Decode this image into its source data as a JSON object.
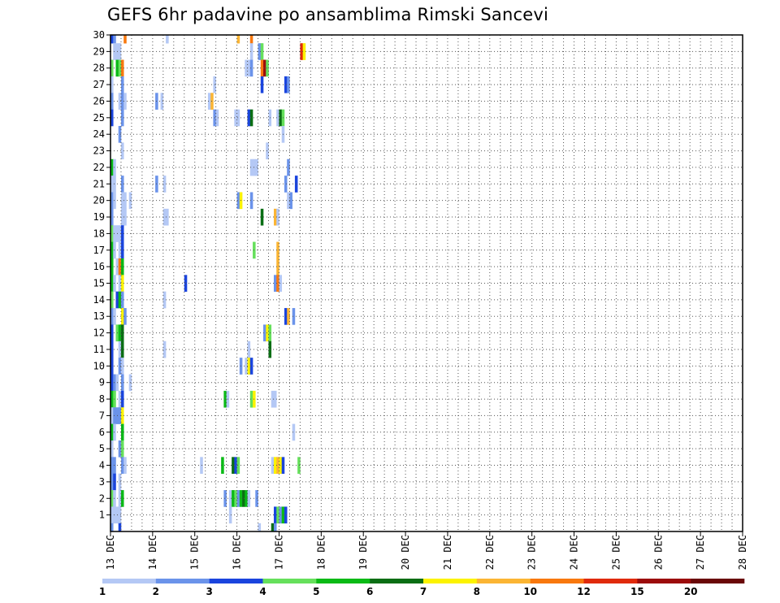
{
  "chart_data": {
    "type": "heatmap",
    "title": "GEFS 6hr padavine po ansamblima Rimski Sancevi",
    "x_tick_labels": [
      "13 DEC",
      "14 DEC",
      "15 DEC",
      "16 DEC",
      "17 DEC",
      "18 DEC",
      "19 DEC",
      "20 DEC",
      "21 DEC",
      "22 DEC",
      "23 DEC",
      "24 DEC",
      "25 DEC",
      "26 DEC",
      "27 DEC",
      "28 DEC"
    ],
    "y_tick_labels": [
      "1",
      "2",
      "3",
      "4",
      "5",
      "6",
      "7",
      "8",
      "9",
      "10",
      "11",
      "12",
      "13",
      "14",
      "15",
      "16",
      "17",
      "18",
      "19",
      "20",
      "21",
      "22",
      "23",
      "24",
      "25",
      "26",
      "27",
      "28",
      "29",
      "30"
    ],
    "xlim": [
      0,
      60
    ],
    "ylim": [
      0,
      30
    ],
    "steps_per_day": 4,
    "grid": true,
    "colorbar": {
      "labels": [
        "1",
        "2",
        "3",
        "4",
        "5",
        "6",
        "7",
        "8",
        "10",
        "12",
        "15",
        "20"
      ],
      "colors": [
        "#b4c8f5",
        "#6b93ea",
        "#1a44de",
        "#66e05c",
        "#0aba16",
        "#0a6e14",
        "#fcf300",
        "#fbb534",
        "#f8780e",
        "#e02a0c",
        "#9c0c0c",
        "#6a0808"
      ]
    },
    "cells": [
      [
        0,
        30,
        2
      ],
      [
        1,
        30,
        1
      ],
      [
        5,
        30,
        8
      ],
      [
        21,
        30,
        0
      ],
      [
        48,
        30,
        7
      ],
      [
        53,
        30,
        8
      ],
      [
        1,
        29,
        0
      ],
      [
        2,
        29,
        0
      ],
      [
        3,
        29,
        0
      ],
      [
        53,
        29,
        0
      ],
      [
        56,
        29,
        1
      ],
      [
        57,
        29,
        3
      ],
      [
        72,
        29,
        9
      ],
      [
        73,
        29,
        6
      ],
      [
        0,
        28,
        3
      ],
      [
        2,
        28,
        4
      ],
      [
        3,
        28,
        3
      ],
      [
        4,
        28,
        8
      ],
      [
        51,
        28,
        0
      ],
      [
        52,
        28,
        0
      ],
      [
        53,
        28,
        1
      ],
      [
        57,
        28,
        8
      ],
      [
        58,
        28,
        10
      ],
      [
        59,
        28,
        3
      ],
      [
        0,
        27,
        0
      ],
      [
        4,
        27,
        1
      ],
      [
        39,
        27,
        0
      ],
      [
        57,
        27,
        2
      ],
      [
        66,
        27,
        2
      ],
      [
        67,
        27,
        1
      ],
      [
        0,
        26,
        1
      ],
      [
        3,
        26,
        0
      ],
      [
        4,
        26,
        1
      ],
      [
        5,
        26,
        0
      ],
      [
        17,
        26,
        1
      ],
      [
        19,
        26,
        0
      ],
      [
        37,
        26,
        0
      ],
      [
        38,
        26,
        7
      ],
      [
        0,
        25,
        2
      ],
      [
        4,
        25,
        1
      ],
      [
        39,
        25,
        1
      ],
      [
        40,
        25,
        0
      ],
      [
        47,
        25,
        0
      ],
      [
        48,
        25,
        0
      ],
      [
        52,
        25,
        2
      ],
      [
        53,
        25,
        5
      ],
      [
        60,
        25,
        0
      ],
      [
        63,
        25,
        0
      ],
      [
        64,
        25,
        5
      ],
      [
        65,
        25,
        3
      ],
      [
        3,
        24,
        1
      ],
      [
        65,
        24,
        0
      ],
      [
        4,
        23,
        0
      ],
      [
        59,
        23,
        0
      ],
      [
        0,
        22,
        4
      ],
      [
        1,
        22,
        0
      ],
      [
        53,
        22,
        0
      ],
      [
        54,
        22,
        0
      ],
      [
        55,
        22,
        0
      ],
      [
        67,
        22,
        1
      ],
      [
        0,
        21,
        0
      ],
      [
        1,
        21,
        0
      ],
      [
        4,
        21,
        1
      ],
      [
        17,
        21,
        1
      ],
      [
        20,
        21,
        0
      ],
      [
        66,
        21,
        1
      ],
      [
        70,
        21,
        2
      ],
      [
        0,
        20,
        1
      ],
      [
        1,
        20,
        0
      ],
      [
        4,
        20,
        0
      ],
      [
        5,
        20,
        0
      ],
      [
        7,
        20,
        0
      ],
      [
        48,
        20,
        1
      ],
      [
        49,
        20,
        6
      ],
      [
        53,
        20,
        1
      ],
      [
        67,
        20,
        0
      ],
      [
        68,
        20,
        1
      ],
      [
        0,
        19,
        1
      ],
      [
        4,
        19,
        0
      ],
      [
        5,
        19,
        0
      ],
      [
        20,
        19,
        0
      ],
      [
        21,
        19,
        0
      ],
      [
        57,
        19,
        5
      ],
      [
        62,
        19,
        7
      ],
      [
        63,
        19,
        0
      ],
      [
        0,
        18,
        3
      ],
      [
        1,
        18,
        0
      ],
      [
        2,
        18,
        0
      ],
      [
        3,
        18,
        0
      ],
      [
        4,
        18,
        2
      ],
      [
        0,
        17,
        4
      ],
      [
        1,
        17,
        0
      ],
      [
        3,
        17,
        0
      ],
      [
        4,
        17,
        2
      ],
      [
        54,
        17,
        3
      ],
      [
        63,
        17,
        7
      ],
      [
        0,
        16,
        4
      ],
      [
        2,
        16,
        0
      ],
      [
        3,
        16,
        8
      ],
      [
        4,
        16,
        4
      ],
      [
        63,
        16,
        7
      ],
      [
        0,
        15,
        4
      ],
      [
        1,
        15,
        0
      ],
      [
        3,
        15,
        0
      ],
      [
        4,
        15,
        6
      ],
      [
        28,
        15,
        2
      ],
      [
        62,
        15,
        1
      ],
      [
        63,
        15,
        8
      ],
      [
        64,
        15,
        0
      ],
      [
        0,
        14,
        3
      ],
      [
        2,
        14,
        2
      ],
      [
        3,
        14,
        4
      ],
      [
        4,
        14,
        1
      ],
      [
        20,
        14,
        0
      ],
      [
        0,
        13,
        1
      ],
      [
        1,
        13,
        0
      ],
      [
        4,
        13,
        6
      ],
      [
        5,
        13,
        1
      ],
      [
        66,
        13,
        2
      ],
      [
        67,
        13,
        7
      ],
      [
        69,
        13,
        1
      ],
      [
        0,
        12,
        2
      ],
      [
        2,
        12,
        3
      ],
      [
        3,
        12,
        4
      ],
      [
        4,
        12,
        5
      ],
      [
        58,
        12,
        1
      ],
      [
        59,
        12,
        6
      ],
      [
        60,
        12,
        3
      ],
      [
        0,
        11,
        2
      ],
      [
        3,
        11,
        0
      ],
      [
        4,
        11,
        5
      ],
      [
        20,
        11,
        0
      ],
      [
        52,
        11,
        0
      ],
      [
        60,
        11,
        5
      ],
      [
        0,
        10,
        2
      ],
      [
        3,
        10,
        1
      ],
      [
        4,
        10,
        0
      ],
      [
        49,
        10,
        1
      ],
      [
        51,
        10,
        0
      ],
      [
        52,
        10,
        6
      ],
      [
        53,
        10,
        2
      ],
      [
        0,
        9,
        2
      ],
      [
        1,
        9,
        1
      ],
      [
        2,
        9,
        0
      ],
      [
        4,
        9,
        1
      ],
      [
        7,
        9,
        0
      ],
      [
        0,
        8,
        4
      ],
      [
        1,
        8,
        3
      ],
      [
        3,
        8,
        0
      ],
      [
        4,
        8,
        2
      ],
      [
        43,
        8,
        4
      ],
      [
        44,
        8,
        0
      ],
      [
        53,
        8,
        3
      ],
      [
        54,
        8,
        6
      ],
      [
        61,
        8,
        0
      ],
      [
        62,
        8,
        0
      ],
      [
        0,
        7,
        0
      ],
      [
        1,
        7,
        1
      ],
      [
        2,
        7,
        1
      ],
      [
        3,
        7,
        1
      ],
      [
        4,
        7,
        6
      ],
      [
        0,
        6,
        4
      ],
      [
        1,
        6,
        0
      ],
      [
        4,
        6,
        4
      ],
      [
        69,
        6,
        0
      ],
      [
        0,
        5,
        0
      ],
      [
        3,
        5,
        1
      ],
      [
        4,
        5,
        3
      ],
      [
        0,
        4,
        1
      ],
      [
        1,
        4,
        1
      ],
      [
        4,
        4,
        1
      ],
      [
        5,
        4,
        0
      ],
      [
        34,
        4,
        0
      ],
      [
        42,
        4,
        4
      ],
      [
        46,
        4,
        5
      ],
      [
        47,
        4,
        2
      ],
      [
        48,
        4,
        3
      ],
      [
        61,
        4,
        0
      ],
      [
        62,
        4,
        6
      ],
      [
        63,
        4,
        7
      ],
      [
        64,
        4,
        6
      ],
      [
        65,
        4,
        2
      ],
      [
        71,
        4,
        3
      ],
      [
        0,
        3,
        1
      ],
      [
        1,
        3,
        2
      ],
      [
        3,
        3,
        0
      ],
      [
        0,
        2,
        3
      ],
      [
        1,
        2,
        0
      ],
      [
        3,
        2,
        0
      ],
      [
        4,
        2,
        4
      ],
      [
        43,
        2,
        1
      ],
      [
        45,
        2,
        0
      ],
      [
        46,
        2,
        4
      ],
      [
        47,
        2,
        3
      ],
      [
        48,
        2,
        1
      ],
      [
        49,
        2,
        4
      ],
      [
        50,
        2,
        5
      ],
      [
        51,
        2,
        4
      ],
      [
        52,
        2,
        0
      ],
      [
        55,
        2,
        1
      ],
      [
        0,
        1,
        0
      ],
      [
        1,
        1,
        0
      ],
      [
        2,
        1,
        0
      ],
      [
        3,
        1,
        0
      ],
      [
        45,
        1,
        0
      ],
      [
        62,
        1,
        2
      ],
      [
        63,
        1,
        3
      ],
      [
        64,
        1,
        1
      ],
      [
        65,
        1,
        4
      ],
      [
        66,
        1,
        2
      ],
      [
        0,
        0,
        1
      ],
      [
        3,
        0,
        2
      ],
      [
        56,
        0,
        0
      ],
      [
        61,
        0,
        5
      ],
      [
        62,
        0,
        1
      ]
    ]
  }
}
